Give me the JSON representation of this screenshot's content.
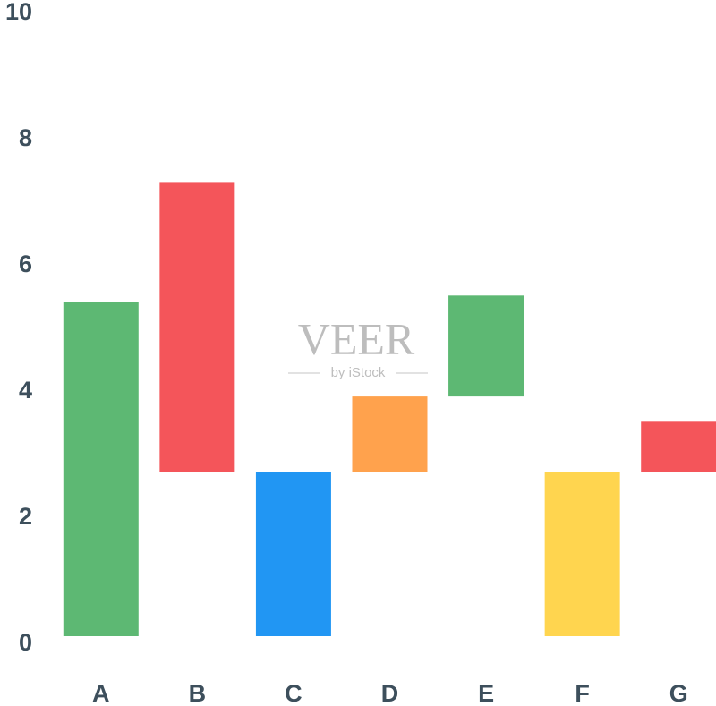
{
  "chart_data": {
    "type": "floating_bar",
    "categories": [
      "A",
      "B",
      "C",
      "D",
      "E",
      "F",
      "G"
    ],
    "low": [
      0,
      2.6,
      0,
      2.6,
      3.8,
      0,
      2.6
    ],
    "high": [
      5.3,
      7.2,
      2.6,
      3.8,
      5.4,
      2.6,
      3.4
    ],
    "colors": [
      "#5db873",
      "#f4555a",
      "#2196f3",
      "#ffa24d",
      "#5db873",
      "#ffd54f",
      "#f4555a"
    ],
    "ylim": [
      0,
      10
    ],
    "yticks": [
      0,
      2,
      4,
      6,
      8,
      10
    ],
    "grid": false
  },
  "watermark": {
    "title": "VEER",
    "subtitle": "by iStock"
  }
}
